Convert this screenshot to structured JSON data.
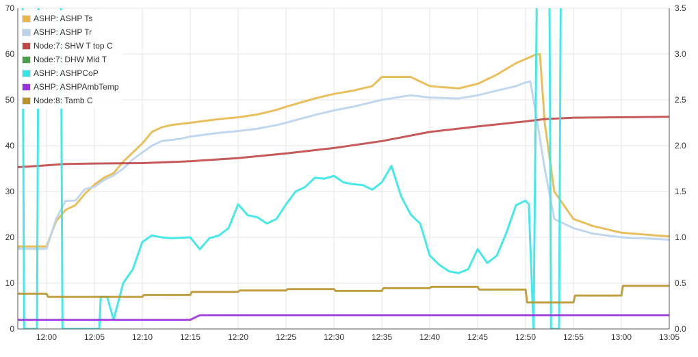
{
  "chart_data": {
    "type": "line",
    "xlabel": "",
    "ylabel": "",
    "x_domain": [
      "11:57",
      "13:05"
    ],
    "x_ticks": [
      "12:00",
      "12:05",
      "12:10",
      "12:15",
      "12:20",
      "12:25",
      "12:30",
      "12:35",
      "12:40",
      "12:45",
      "12:50",
      "12:55",
      "13:00",
      "13:05"
    ],
    "y_left": {
      "range": [
        0,
        70
      ],
      "ticks": [
        "0",
        "10",
        "20",
        "30",
        "40",
        "50",
        "60",
        "70"
      ]
    },
    "y_right": {
      "range": [
        0,
        3.5
      ],
      "ticks": [
        "0.0",
        "0.5",
        "1.0",
        "1.5",
        "2.0",
        "2.5",
        "3.0",
        "3.5"
      ]
    },
    "grid": true,
    "legend_position": "top-left",
    "series": [
      {
        "name": "ASHP: ASHP Ts",
        "color": "#e6b84a",
        "axis": "left",
        "points": [
          [
            "11:57",
            18.0
          ],
          [
            "12:00",
            18.0
          ],
          [
            "12:01",
            23.5
          ],
          [
            "12:02",
            26.0
          ],
          [
            "12:03",
            27.0
          ],
          [
            "12:04",
            29.5
          ],
          [
            "12:05",
            31.5
          ],
          [
            "12:06",
            33.0
          ],
          [
            "12:07",
            34.0
          ],
          [
            "12:08",
            36.5
          ],
          [
            "12:09",
            38.5
          ],
          [
            "12:10",
            40.5
          ],
          [
            "12:11",
            43.0
          ],
          [
            "12:12",
            44.0
          ],
          [
            "12:13",
            44.5
          ],
          [
            "12:15",
            45.0
          ],
          [
            "12:18",
            45.8
          ],
          [
            "12:20",
            46.2
          ],
          [
            "12:22",
            46.8
          ],
          [
            "12:24",
            47.8
          ],
          [
            "12:25",
            48.5
          ],
          [
            "12:28",
            50.3
          ],
          [
            "12:30",
            51.3
          ],
          [
            "12:32",
            52.0
          ],
          [
            "12:34",
            53.0
          ],
          [
            "12:35",
            55.0
          ],
          [
            "12:38",
            55.0
          ],
          [
            "12:40",
            53.0
          ],
          [
            "12:43",
            52.5
          ],
          [
            "12:45",
            53.5
          ],
          [
            "12:47",
            55.5
          ],
          [
            "12:49",
            58.0
          ],
          [
            "12:51",
            59.8
          ],
          [
            "12:51:30",
            60.0
          ],
          [
            "12:52",
            45.0
          ],
          [
            "12:53",
            30.0
          ],
          [
            "12:55",
            24.0
          ],
          [
            "12:57",
            22.5
          ],
          [
            "13:00",
            21.0
          ],
          [
            "13:05",
            20.2
          ]
        ]
      },
      {
        "name": "ASHP: ASHP Tr",
        "color": "#b9d3ec",
        "axis": "left",
        "points": [
          [
            "11:57",
            17.5
          ],
          [
            "12:00",
            17.5
          ],
          [
            "12:01",
            24.0
          ],
          [
            "12:02",
            28.0
          ],
          [
            "12:03",
            28.0
          ],
          [
            "12:04",
            30.5
          ],
          [
            "12:05",
            31.0
          ],
          [
            "12:06",
            32.5
          ],
          [
            "12:07",
            33.5
          ],
          [
            "12:08",
            35.0
          ],
          [
            "12:09",
            37.0
          ],
          [
            "12:10",
            38.5
          ],
          [
            "12:11",
            40.0
          ],
          [
            "12:12",
            41.0
          ],
          [
            "12:14",
            41.5
          ],
          [
            "12:15",
            42.0
          ],
          [
            "12:18",
            42.8
          ],
          [
            "12:20",
            43.2
          ],
          [
            "12:22",
            43.7
          ],
          [
            "12:24",
            44.5
          ],
          [
            "12:25",
            45.0
          ],
          [
            "12:28",
            46.7
          ],
          [
            "12:30",
            47.7
          ],
          [
            "12:32",
            48.5
          ],
          [
            "12:35",
            50.0
          ],
          [
            "12:38",
            51.0
          ],
          [
            "12:40",
            50.5
          ],
          [
            "12:43",
            50.3
          ],
          [
            "12:45",
            51.0
          ],
          [
            "12:47",
            52.0
          ],
          [
            "12:49",
            53.0
          ],
          [
            "12:50",
            53.8
          ],
          [
            "12:50:30",
            54.0
          ],
          [
            "12:51",
            48.0
          ],
          [
            "12:52",
            35.0
          ],
          [
            "12:53",
            24.0
          ],
          [
            "12:55",
            22.0
          ],
          [
            "12:57",
            20.8
          ],
          [
            "13:00",
            20.0
          ],
          [
            "13:05",
            19.5
          ]
        ]
      },
      {
        "name": "Node:7: SHW T top C",
        "color": "#c04848",
        "axis": "left",
        "points": [
          [
            "11:57",
            35.3
          ],
          [
            "12:00",
            35.7
          ],
          [
            "12:02",
            36.0
          ],
          [
            "12:05",
            36.1
          ],
          [
            "12:10",
            36.2
          ],
          [
            "12:15",
            36.6
          ],
          [
            "12:20",
            37.3
          ],
          [
            "12:25",
            38.3
          ],
          [
            "12:30",
            39.5
          ],
          [
            "12:35",
            41.0
          ],
          [
            "12:40",
            43.0
          ],
          [
            "12:45",
            44.2
          ],
          [
            "12:50",
            45.3
          ],
          [
            "12:52",
            45.8
          ],
          [
            "12:55",
            46.1
          ],
          [
            "13:00",
            46.2
          ],
          [
            "13:05",
            46.3
          ]
        ]
      },
      {
        "name": "Node:7: DHW Mid T",
        "color": "#4aa04a",
        "axis": "left",
        "points": []
      },
      {
        "name": "ASHP: ASHPCoP",
        "color": "#33e6e6",
        "axis": "right",
        "points": [
          [
            "11:57:30",
            3.6
          ],
          [
            "11:57:40",
            0.0
          ],
          [
            "11:59:00",
            0.0
          ],
          [
            "11:59:10",
            3.6
          ],
          [
            "12:01:30",
            3.6
          ],
          [
            "12:01:40",
            0.0
          ],
          [
            "12:05:30",
            0.0
          ],
          [
            "12:05:40",
            0.35
          ],
          [
            "12:06:20",
            0.35
          ],
          [
            "12:07",
            0.1
          ],
          [
            "12:08",
            0.5
          ],
          [
            "12:09",
            0.65
          ],
          [
            "12:10",
            0.95
          ],
          [
            "12:11",
            1.02
          ],
          [
            "12:12",
            1.0
          ],
          [
            "12:13",
            0.99
          ],
          [
            "12:15",
            1.0
          ],
          [
            "12:16",
            0.87
          ],
          [
            "12:17",
            0.99
          ],
          [
            "12:18",
            1.02
          ],
          [
            "12:19",
            1.1
          ],
          [
            "12:20",
            1.36
          ],
          [
            "12:21",
            1.24
          ],
          [
            "12:22",
            1.22
          ],
          [
            "12:23",
            1.15
          ],
          [
            "12:24",
            1.2
          ],
          [
            "12:25",
            1.36
          ],
          [
            "12:26",
            1.5
          ],
          [
            "12:27",
            1.55
          ],
          [
            "12:28",
            1.65
          ],
          [
            "12:29",
            1.64
          ],
          [
            "12:30",
            1.67
          ],
          [
            "12:31",
            1.6
          ],
          [
            "12:32",
            1.58
          ],
          [
            "12:33",
            1.57
          ],
          [
            "12:34",
            1.52
          ],
          [
            "12:35",
            1.6
          ],
          [
            "12:36",
            1.78
          ],
          [
            "12:37",
            1.45
          ],
          [
            "12:38",
            1.25
          ],
          [
            "12:39",
            1.15
          ],
          [
            "12:40",
            0.8
          ],
          [
            "12:41",
            0.7
          ],
          [
            "12:42",
            0.63
          ],
          [
            "12:43",
            0.61
          ],
          [
            "12:44",
            0.65
          ],
          [
            "12:45",
            0.87
          ],
          [
            "12:46",
            0.72
          ],
          [
            "12:47",
            0.8
          ],
          [
            "12:48",
            1.05
          ],
          [
            "12:49",
            1.35
          ],
          [
            "12:50",
            1.4
          ],
          [
            "12:50:20",
            1.36
          ],
          [
            "12:50:50",
            0.0
          ],
          [
            "12:51:10",
            3.6
          ],
          [
            "12:52:30",
            3.6
          ],
          [
            "12:52:40",
            0.0
          ],
          [
            "12:53:30",
            0.0
          ],
          [
            "12:53:40",
            3.6
          ]
        ]
      },
      {
        "name": "ASHP: ASHPAmbTemp",
        "color": "#9933dd",
        "axis": "left",
        "points": [
          [
            "11:57",
            2.0
          ],
          [
            "12:15",
            2.0
          ],
          [
            "12:16",
            3.0
          ],
          [
            "12:30",
            3.0
          ],
          [
            "13:05",
            3.0
          ]
        ]
      },
      {
        "name": "Node:8: Tamb C",
        "color": "#b8952e",
        "axis": "left",
        "points": [
          [
            "11:57",
            7.7
          ],
          [
            "12:00",
            7.7
          ],
          [
            "12:00:10",
            7.0
          ],
          [
            "12:10",
            7.0
          ],
          [
            "12:10:10",
            7.4
          ],
          [
            "12:15",
            7.4
          ],
          [
            "12:15:10",
            8.1
          ],
          [
            "12:20",
            8.1
          ],
          [
            "12:20:10",
            8.4
          ],
          [
            "12:25",
            8.4
          ],
          [
            "12:25:10",
            8.7
          ],
          [
            "12:30",
            8.7
          ],
          [
            "12:30:10",
            8.3
          ],
          [
            "12:35",
            8.3
          ],
          [
            "12:35:10",
            8.9
          ],
          [
            "12:40",
            8.9
          ],
          [
            "12:40:10",
            9.2
          ],
          [
            "12:45",
            9.2
          ],
          [
            "12:45:10",
            8.6
          ],
          [
            "12:50",
            8.6
          ],
          [
            "12:50:10",
            5.8
          ],
          [
            "12:55",
            5.8
          ],
          [
            "12:55:10",
            7.3
          ],
          [
            "13:00",
            7.3
          ],
          [
            "13:00:10",
            9.4
          ],
          [
            "13:05",
            9.4
          ],
          [
            "13:05:10",
            10.2
          ]
        ]
      }
    ]
  }
}
